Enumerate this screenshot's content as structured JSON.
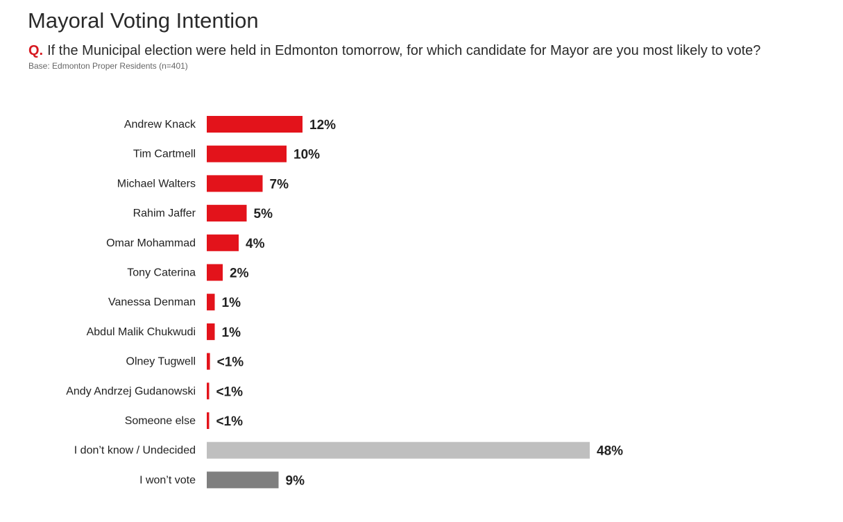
{
  "header": {
    "title": "Mayoral Voting Intention",
    "question_label": "Q.",
    "question_text": "If the Municipal election were held in Edmonton tomorrow, for which candidate for Mayor are you most likely to vote?",
    "base_note": "Base: Edmonton Proper Residents (n=401)"
  },
  "colors": {
    "candidate": "#e3131b",
    "undecided": "#bfbfbf",
    "wont_vote": "#7f7f7f",
    "question_accent": "#d71920"
  },
  "chart_data": {
    "type": "bar",
    "orientation": "horizontal",
    "title": "Mayoral Voting Intention",
    "grid": false,
    "legend": "none",
    "xlim": [
      0,
      48
    ],
    "categories": [
      "Andrew Knack",
      "Tim Cartmell",
      "Michael Walters",
      "Rahim Jaffer",
      "Omar Mohammad",
      "Tony Caterina",
      "Vanessa Denman",
      "Abdul Malik Chukwudi",
      "Olney Tugwell",
      "Andy Andrzej Gudanowski",
      "Someone else",
      "I don’t know / Undecided",
      "I won’t vote"
    ],
    "values": [
      12,
      10,
      7,
      5,
      4,
      2,
      1,
      1,
      0.4,
      0.3,
      0.3,
      48,
      9
    ],
    "value_labels": [
      "12%",
      "10%",
      "7%",
      "5%",
      "4%",
      "2%",
      "1%",
      "1%",
      "<1%",
      "<1%",
      "<1%",
      "48%",
      "9%"
    ],
    "bar_colors": [
      "candidate",
      "candidate",
      "candidate",
      "candidate",
      "candidate",
      "candidate",
      "candidate",
      "candidate",
      "candidate",
      "candidate",
      "candidate",
      "undecided",
      "wont_vote"
    ]
  }
}
